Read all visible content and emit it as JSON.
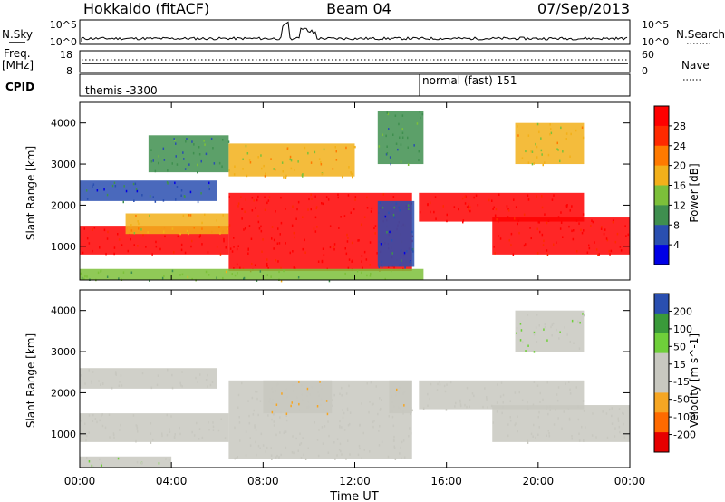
{
  "header": {
    "station": "Hokkaido (fitACF)",
    "beam": "Beam 04",
    "date": "07/Sep/2013"
  },
  "strips": {
    "nsky_label": "N.Sky",
    "nsky_ticks_left": [
      "10^5",
      "10^0"
    ],
    "nsky_ticks_right": [
      "10^5",
      "10^0"
    ],
    "nsearch_label": "N.Search",
    "freq_label_1": "Freq.",
    "freq_label_2": "[MHz]",
    "freq_ticks": [
      "18",
      "8"
    ],
    "nave_label": "Nave",
    "nave_ticks": [
      "60",
      "0"
    ],
    "cpid_label": "CPID",
    "cpid_segments": [
      {
        "name": "themis -3300",
        "start_hour": 0
      },
      {
        "name": "normal (fast) 151",
        "start_hour": 15
      }
    ]
  },
  "x_axis": {
    "label": "Time UT",
    "ticks": [
      "00:00",
      "04:00",
      "08:00",
      "12:00",
      "16:00",
      "20:00",
      "00:00"
    ]
  },
  "chart_data": [
    {
      "type": "heatmap",
      "name": "power",
      "ylabel": "Slant Range [km]",
      "yticks": [
        "1000",
        "2000",
        "3000",
        "4000"
      ],
      "ylim": [
        180,
        4500
      ],
      "xlim_hours": [
        0,
        24
      ],
      "colorbar_label": "Power [dB]",
      "colorbar_ticks": [
        "28",
        "24",
        "20",
        "16",
        "12",
        "8",
        "4"
      ],
      "colorbar_range": [
        0,
        30
      ],
      "colors": [
        "#0000e6",
        "#2a4fb0",
        "#3f8f4f",
        "#7cc03a",
        "#f2b01a",
        "#ff7a00",
        "#ff2a00",
        "#ff0000"
      ],
      "regions": [
        {
          "t0": 0.0,
          "t1": 6.5,
          "r0": 800,
          "r1": 1500,
          "level": 28
        },
        {
          "t0": 2.0,
          "t1": 6.5,
          "r0": 1300,
          "r1": 1800,
          "level": 18
        },
        {
          "t0": 6.5,
          "t1": 14.5,
          "r0": 400,
          "r1": 2300,
          "level": 28
        },
        {
          "t0": 14.8,
          "t1": 22.0,
          "r0": 1600,
          "r1": 2300,
          "level": 28
        },
        {
          "t0": 18.0,
          "t1": 24.0,
          "r0": 800,
          "r1": 1700,
          "level": 28
        },
        {
          "t0": 0.0,
          "t1": 6.0,
          "r0": 2100,
          "r1": 2600,
          "level": 6
        },
        {
          "t0": 3.0,
          "t1": 6.5,
          "r0": 2800,
          "r1": 3700,
          "level": 8
        },
        {
          "t0": 6.5,
          "t1": 12.0,
          "r0": 2700,
          "r1": 3500,
          "level": 16
        },
        {
          "t0": 13.0,
          "t1": 15.0,
          "r0": 3000,
          "r1": 4300,
          "level": 10
        },
        {
          "t0": 0.0,
          "t1": 15.0,
          "r0": 180,
          "r1": 450,
          "level": 12
        },
        {
          "t0": 13.0,
          "t1": 14.6,
          "r0": 500,
          "r1": 2100,
          "level": 6
        },
        {
          "t0": 19.0,
          "t1": 22.0,
          "r0": 3000,
          "r1": 4000,
          "level": 16
        }
      ]
    },
    {
      "type": "heatmap",
      "name": "velocity",
      "ylabel": "Slant Range [km]",
      "yticks": [
        "1000",
        "2000",
        "3000",
        "4000"
      ],
      "ylim": [
        180,
        4500
      ],
      "xlim_hours": [
        0,
        24
      ],
      "colorbar_label": "Velocity [m s^-1]",
      "colorbar_ticks": [
        "200",
        "100",
        "50",
        "15",
        "-15",
        "-50",
        "-100",
        "-200"
      ],
      "colorbar_range": [
        -250,
        250
      ],
      "colors": [
        "#e60000",
        "#ff6a00",
        "#f6a623",
        "#c8c8c0",
        "#c8c8c0",
        "#6fcf3a",
        "#3a9a3a",
        "#2a4fb0"
      ],
      "regions": [
        {
          "t0": 0.0,
          "t1": 6.5,
          "r0": 800,
          "r1": 1500,
          "level": 0
        },
        {
          "t0": 6.5,
          "t1": 14.5,
          "r0": 400,
          "r1": 2300,
          "level": 0
        },
        {
          "t0": 14.8,
          "t1": 22.0,
          "r0": 1600,
          "r1": 2300,
          "level": 0
        },
        {
          "t0": 18.0,
          "t1": 24.0,
          "r0": 800,
          "r1": 1700,
          "level": 0
        },
        {
          "t0": 0.0,
          "t1": 6.0,
          "r0": 2100,
          "r1": 2600,
          "level": 0
        },
        {
          "t0": 8.0,
          "t1": 11.0,
          "r0": 1500,
          "r1": 2300,
          "level": -40
        },
        {
          "t0": 13.5,
          "t1": 14.5,
          "r0": 1500,
          "r1": 2300,
          "level": -40
        },
        {
          "t0": 0.0,
          "t1": 4.0,
          "r0": 180,
          "r1": 450,
          "level": 40
        },
        {
          "t0": 19.0,
          "t1": 22.0,
          "r0": 3000,
          "r1": 4000,
          "level": 40
        }
      ]
    }
  ]
}
